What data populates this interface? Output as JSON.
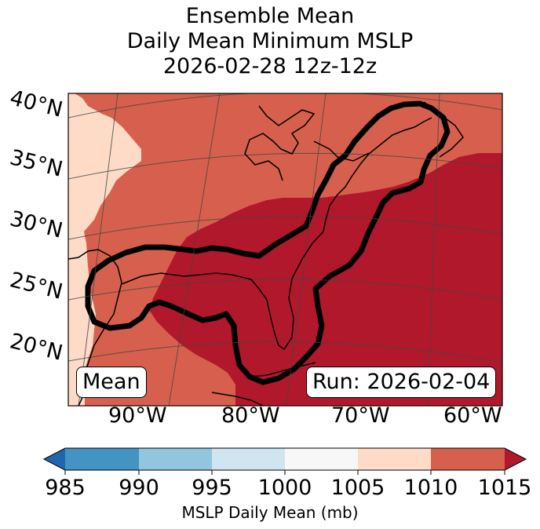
{
  "title": {
    "line1": "Ensemble Mean",
    "line2": "Daily Mean Minimum MSLP",
    "line3": "2026-02-28 12z-12z"
  },
  "map": {
    "lat_labels": [
      "40°N",
      "35°N",
      "30°N",
      "25°N",
      "20°N"
    ],
    "lon_labels": [
      "90°W",
      "80°W",
      "70°W",
      "60°W"
    ],
    "mean_label": "Mean",
    "run_label": "Run: 2026-02-04",
    "region": "Eastern United States, Gulf of Mexico, western Atlantic"
  },
  "colorbar": {
    "ticks": [
      "985",
      "990",
      "995",
      "1000",
      "1005",
      "1010",
      "1015"
    ],
    "label": "MSLP Daily Mean (mb)",
    "colors": [
      "#2166ac",
      "#4393c3",
      "#92c5de",
      "#d1e5f0",
      "#f7f7f7",
      "#fddbc7",
      "#d6604d",
      "#b2182b"
    ]
  },
  "field_colors": {
    "band_1000_1005": "#f7f7f7",
    "band_1005_1010": "#fddbc7",
    "band_1010_1015": "#d6604d",
    "band_above_1015": "#b2182b",
    "outline": "#000000"
  }
}
